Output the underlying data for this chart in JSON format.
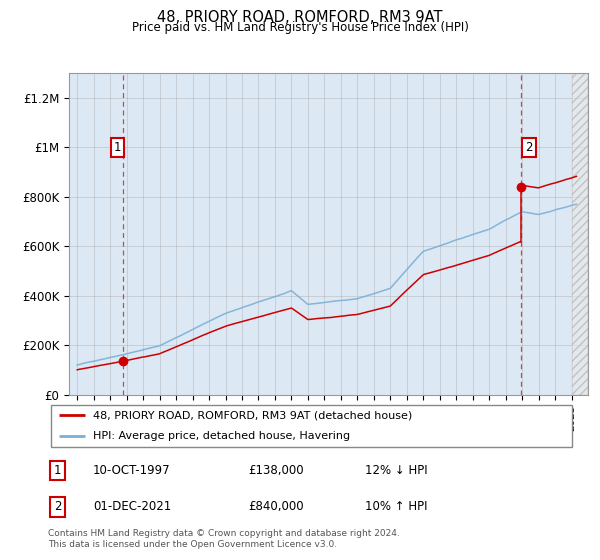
{
  "title": "48, PRIORY ROAD, ROMFORD, RM3 9AT",
  "subtitle": "Price paid vs. HM Land Registry's House Price Index (HPI)",
  "ylabel_ticks": [
    "£0",
    "£200K",
    "£400K",
    "£600K",
    "£800K",
    "£1M",
    "£1.2M"
  ],
  "ytick_vals": [
    0,
    200000,
    400000,
    600000,
    800000,
    1000000,
    1200000
  ],
  "ylim": [
    0,
    1300000
  ],
  "xlim_left": 1994.5,
  "xlim_right": 2026.0,
  "red_color": "#cc0000",
  "blue_color": "#7bafd4",
  "bg_color": "#dce9f5",
  "plot_bg": "#dce9f5",
  "grid_color": "#aaaaaa",
  "sale1_x": 1997.78,
  "sale1_y": 138000,
  "sale2_x": 2021.92,
  "sale2_y": 840000,
  "legend_line1": "48, PRIORY ROAD, ROMFORD, RM3 9AT (detached house)",
  "legend_line2": "HPI: Average price, detached house, Havering",
  "table_row1": [
    "1",
    "10-OCT-1997",
    "£138,000",
    "12% ↓ HPI"
  ],
  "table_row2": [
    "2",
    "01-DEC-2021",
    "£840,000",
    "10% ↑ HPI"
  ],
  "footer": "Contains HM Land Registry data © Crown copyright and database right 2024.\nThis data is licensed under the Open Government Licence v3.0."
}
